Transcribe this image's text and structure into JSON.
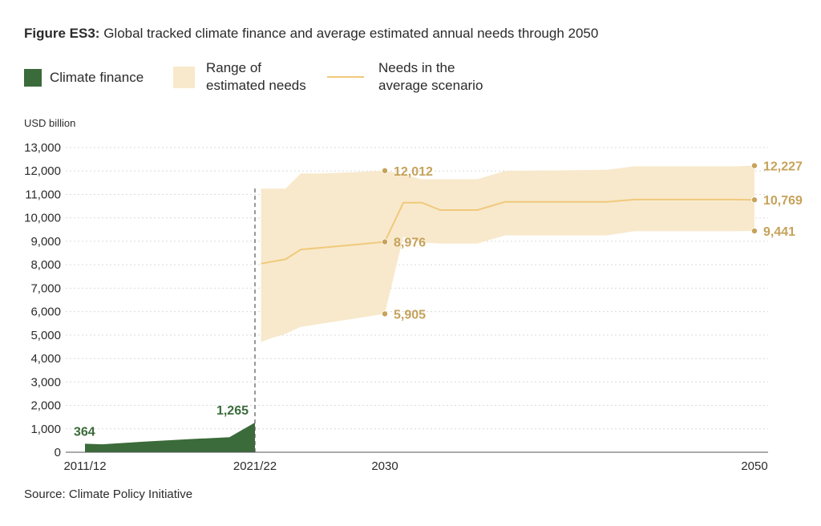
{
  "figure": {
    "label": "Figure ES3:",
    "caption": "Global tracked climate finance and average estimated annual needs through 2050",
    "source": "Source: Climate Policy Initiative"
  },
  "legend": {
    "finance": "Climate finance",
    "range_line1": "Range of",
    "range_line2": "estimated needs",
    "needs_line1": "Needs in the",
    "needs_line2": "average scenario"
  },
  "colors": {
    "finance": "#3b6b3a",
    "range": "#f8e9cc",
    "needs_line": "#f0c97b",
    "needs_labels": "#c6a25a",
    "grid": "#d9d9d9",
    "text": "#2b2b2b"
  },
  "chart_data": {
    "type": "area",
    "ylabel": "USD billion",
    "ylim": [
      0,
      13000
    ],
    "yticks": [
      "0",
      "1,000",
      "2,000",
      "3,000",
      "4,000",
      "5,000",
      "6,000",
      "7,000",
      "8,000",
      "9,000",
      "10,000",
      "11,000",
      "12,000",
      "13,000"
    ],
    "xticks": [
      "2011/12",
      "2021/22",
      "2030",
      "2050"
    ],
    "grid": "horizontal dashed",
    "finance": {
      "name": "Climate finance",
      "x": [
        2011.5,
        2012.5,
        2015,
        2018,
        2020,
        2021.5
      ],
      "values": [
        364,
        340,
        450,
        570,
        640,
        1265
      ],
      "labels": [
        {
          "x": 2011.5,
          "value": 364,
          "text": "364"
        },
        {
          "x": 2021.5,
          "value": 1265,
          "text": "1,265"
        }
      ]
    },
    "needs_range": {
      "name": "Range of estimated needs",
      "x": [
        2021.9,
        2022.5,
        2023.5,
        2024.5,
        2026,
        2028,
        2030,
        2031,
        2032,
        2033,
        2035,
        2036.5,
        2042,
        2043.5,
        2049,
        2050
      ],
      "high": [
        11250,
        11250,
        11250,
        11900,
        11900,
        11950,
        12012,
        11850,
        11650,
        11650,
        11650,
        12000,
        12050,
        12200,
        12200,
        12227
      ],
      "low": [
        4700,
        4850,
        5050,
        5350,
        5500,
        5700,
        5905,
        9200,
        8950,
        8900,
        8900,
        9250,
        9250,
        9430,
        9430,
        9441
      ]
    },
    "needs_average": {
      "name": "Needs in the average scenario",
      "x": [
        2021.9,
        2023.5,
        2024.5,
        2028,
        2030,
        2031,
        2032,
        2033,
        2035,
        2036.5,
        2042,
        2043.5,
        2049,
        2050
      ],
      "values": [
        8050,
        8230,
        8650,
        8850,
        8976,
        10650,
        10650,
        10330,
        10330,
        10680,
        10680,
        10780,
        10780,
        10769
      ]
    },
    "point_labels": [
      {
        "x": 2030,
        "value": 12012,
        "text": "12,012"
      },
      {
        "x": 2030,
        "value": 8976,
        "text": "8,976"
      },
      {
        "x": 2030,
        "value": 5905,
        "text": "5,905"
      },
      {
        "x": 2050,
        "value": 12227,
        "text": "12,227"
      },
      {
        "x": 2050,
        "value": 10769,
        "text": "10,769"
      },
      {
        "x": 2050,
        "value": 9441,
        "text": "9,441"
      }
    ],
    "divider_at": "2021/22"
  }
}
